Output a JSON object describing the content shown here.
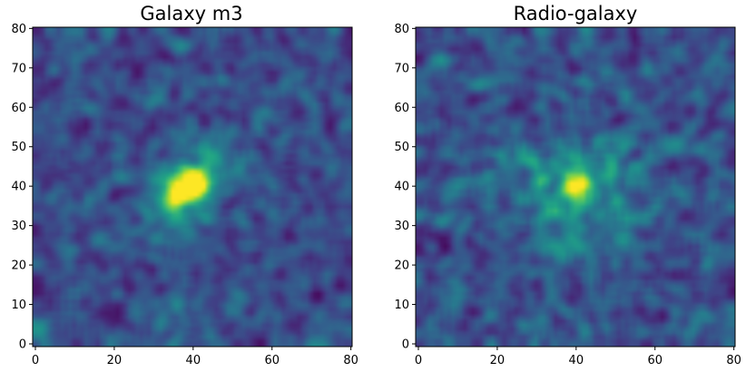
{
  "chart_data": [
    {
      "type": "heatmap",
      "title": "Galaxy m3",
      "xlabel": "",
      "ylabel": "",
      "xlim": [
        0,
        81
      ],
      "ylim": [
        0,
        81
      ],
      "xticks": [
        0,
        20,
        40,
        60,
        80
      ],
      "yticks": [
        0,
        10,
        20,
        30,
        40,
        50,
        60,
        70,
        80
      ],
      "colormap": "viridis",
      "grid_size": [
        81,
        81
      ],
      "source": {
        "x": 39,
        "y": 40,
        "peak": 1.0,
        "core_sigma": 2.6,
        "halo_sigma": 8.5,
        "elongation": "diagonal"
      },
      "background_level": 0.28,
      "noise_level": 0.22,
      "seed": 7
    },
    {
      "type": "heatmap",
      "title": "Radio-galaxy",
      "xlabel": "",
      "ylabel": "",
      "xlim": [
        0,
        81
      ],
      "ylim": [
        0,
        81
      ],
      "xticks": [
        0,
        20,
        40,
        60,
        80
      ],
      "yticks": [
        0,
        10,
        20,
        30,
        40,
        50,
        60,
        70,
        80
      ],
      "colormap": "viridis",
      "grid_size": [
        81,
        81
      ],
      "source": {
        "x": 40,
        "y": 40,
        "peak": 1.0,
        "core_sigma": 2.2,
        "halo_sigma": 9.5,
        "elongation": "round"
      },
      "background_level": 0.27,
      "noise_level": 0.22,
      "seed": 19
    }
  ]
}
